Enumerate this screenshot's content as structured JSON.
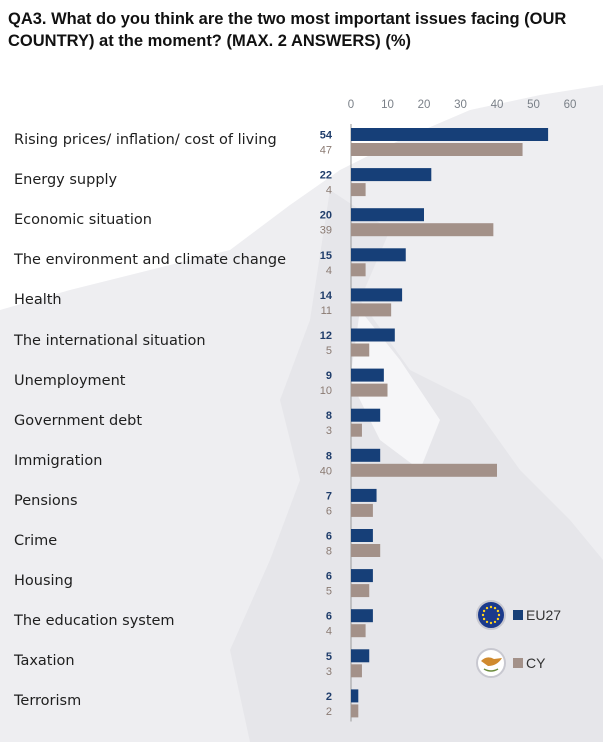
{
  "title": "QA3. What do you think are the two most important issues facing (OUR COUNTRY) at the moment? (MAX. 2 ANSWERS) (%)",
  "chart_data": {
    "type": "bar",
    "orientation": "horizontal",
    "title": "QA3. What do you think are the two most important issues facing (OUR COUNTRY) at the moment? (MAX. 2 ANSWERS) (%)",
    "xlim": [
      0,
      60
    ],
    "x_ticks": [
      0,
      10,
      20,
      30,
      40,
      50,
      60
    ],
    "axis_position": "top",
    "grid": false,
    "legend_position": "bottom-right",
    "categories": [
      "Rising prices/ inflation/ cost of living",
      "Energy supply",
      "Economic situation",
      "The environment and climate change",
      "Health",
      "The international situation",
      "Unemployment",
      "Government debt",
      "Immigration",
      "Pensions",
      "Crime",
      "Housing",
      "The education system",
      "Taxation",
      "Terrorism"
    ],
    "series": [
      {
        "name": "EU27",
        "color": "#163f78",
        "label_color": "#1f3d6b",
        "icon": "eu-flag-icon",
        "values": [
          54,
          22,
          20,
          15,
          14,
          12,
          9,
          8,
          8,
          7,
          6,
          6,
          6,
          5,
          2
        ]
      },
      {
        "name": "CY",
        "color": "#a39189",
        "label_color": "#8a7a72",
        "icon": "cyprus-flag-icon",
        "values": [
          47,
          4,
          39,
          4,
          11,
          5,
          10,
          3,
          40,
          6,
          8,
          5,
          4,
          3,
          2
        ]
      }
    ]
  }
}
